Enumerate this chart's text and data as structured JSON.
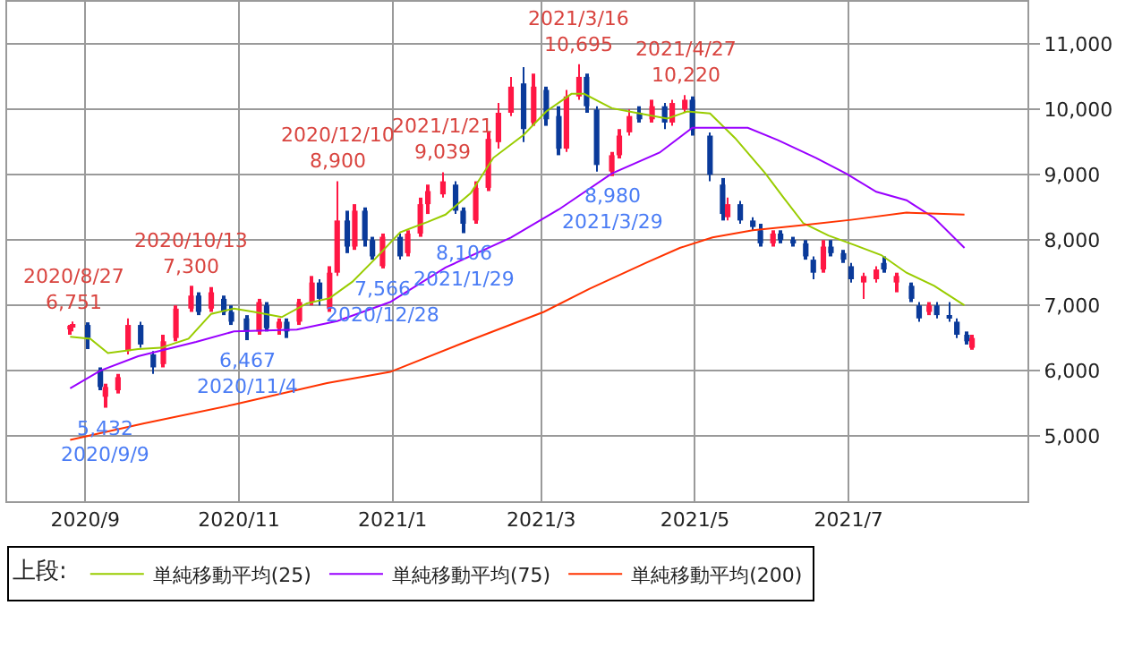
{
  "chart_data": {
    "type": "candlestick",
    "legend": "bottom",
    "legend_title": "上段:",
    "grid": true,
    "xlim": [
      "2020-08-01",
      "2021-09-10"
    ],
    "xticks": [
      {
        "value": "2020-09-01",
        "label": "2020/9"
      },
      {
        "value": "2020-11-01",
        "label": "2020/11"
      },
      {
        "value": "2021-01-01",
        "label": "2021/1"
      },
      {
        "value": "2021-03-01",
        "label": "2021/3"
      },
      {
        "value": "2021-05-01",
        "label": "2021/5"
      },
      {
        "value": "2021-07-01",
        "label": "2021/7"
      }
    ],
    "ylim": [
      4000,
      11650
    ],
    "yticks": [
      {
        "value": 5000,
        "label": "5,000"
      },
      {
        "value": 6000,
        "label": "6,000"
      },
      {
        "value": 7000,
        "label": "7,000"
      },
      {
        "value": 8000,
        "label": "8,000"
      },
      {
        "value": 9000,
        "label": "9,000"
      },
      {
        "value": 10000,
        "label": "10,000"
      },
      {
        "value": 11000,
        "label": "11,000"
      }
    ],
    "annotations": [
      {
        "text": "2020/8/27\n6,751",
        "x": "2020-08-27",
        "y": 6751
      },
      {
        "text": "5,432\n2020/9/9",
        "x": "2020-09-09",
        "y": 5432
      },
      {
        "text": "2020/10/13\n7,300",
        "x": "2020-10-13",
        "y": 7300
      },
      {
        "text": "6,467\n2020/11/4",
        "x": "2020-11-04",
        "y": 6467
      },
      {
        "text": "2020/12/10\n8,900",
        "x": "2020-12-10",
        "y": 8900
      },
      {
        "text": "7,566\n2020/12/28",
        "x": "2020-12-28",
        "y": 7566
      },
      {
        "text": "2021/1/21\n9,039",
        "x": "2021-01-21",
        "y": 9039
      },
      {
        "text": "8,106\n2021/1/29",
        "x": "2021-01-29",
        "y": 8106
      },
      {
        "text": "2021/3/16\n10,695",
        "x": "2021-03-16",
        "y": 10695
      },
      {
        "text": "8,980\n2021/3/29",
        "x": "2021-03-29",
        "y": 8980
      },
      {
        "text": "2021/4/27\n10,220",
        "x": "2021-04-27",
        "y": 10220
      }
    ],
    "series": [
      {
        "type": "line",
        "name": "単純移動平均(25)",
        "color": "#99cc00",
        "x": [
          "2020-08-26",
          "2020-09-03",
          "2020-09-10",
          "2020-09-22",
          "2020-10-01",
          "2020-10-12",
          "2020-10-21",
          "2020-10-30",
          "2020-11-07",
          "2020-11-18",
          "2020-11-28",
          "2020-12-07",
          "2020-12-16",
          "2020-12-25",
          "2021-01-04",
          "2021-01-15",
          "2021-01-22",
          "2021-02-01",
          "2021-02-10",
          "2021-02-22",
          "2021-03-03",
          "2021-03-13",
          "2021-03-18",
          "2021-03-29",
          "2021-04-09",
          "2021-04-20",
          "2021-04-28",
          "2021-05-07",
          "2021-05-17",
          "2021-05-29",
          "2021-06-05",
          "2021-06-13",
          "2021-06-23",
          "2021-07-03",
          "2021-07-14",
          "2021-07-24",
          "2021-08-04",
          "2021-08-16"
        ],
        "values": [
          6520,
          6490,
          6270,
          6330,
          6350,
          6490,
          6870,
          6950,
          6900,
          6820,
          7030,
          7110,
          7360,
          7710,
          8120,
          8280,
          8390,
          8720,
          9260,
          9610,
          9970,
          10240,
          10240,
          10020,
          9940,
          9860,
          9970,
          9940,
          9560,
          9020,
          8660,
          8260,
          8070,
          7930,
          7770,
          7500,
          7300,
          7000
        ]
      },
      {
        "type": "line",
        "name": "単純移動平均(75)",
        "color": "#9900ff",
        "x": [
          "2020-08-26",
          "2020-09-07",
          "2020-09-22",
          "2020-10-15",
          "2020-10-30",
          "2020-11-24",
          "2020-12-10",
          "2020-12-31",
          "2021-01-22",
          "2021-02-17",
          "2021-03-08",
          "2021-03-29",
          "2021-04-17",
          "2021-04-30",
          "2021-05-22",
          "2021-06-03",
          "2021-06-18",
          "2021-06-30",
          "2021-07-12",
          "2021-07-24",
          "2021-08-04",
          "2021-08-16"
        ],
        "values": [
          5730,
          6000,
          6220,
          6440,
          6600,
          6630,
          6760,
          7050,
          7580,
          8040,
          8470,
          9020,
          9340,
          9720,
          9720,
          9530,
          9260,
          9020,
          8740,
          8610,
          8340,
          7880
        ]
      },
      {
        "type": "line",
        "name": "単純移動平均(200)",
        "color": "#ff3300",
        "x": [
          "2020-08-26",
          "2020-09-24",
          "2020-10-30",
          "2020-12-06",
          "2020-12-31",
          "2021-01-28",
          "2021-03-02",
          "2021-03-20",
          "2021-04-12",
          "2021-04-25",
          "2021-05-08",
          "2021-05-24",
          "2021-06-13",
          "2021-07-02",
          "2021-07-24",
          "2021-08-16"
        ],
        "values": [
          4940,
          5190,
          5480,
          5810,
          5980,
          6410,
          6900,
          7250,
          7660,
          7880,
          8040,
          8150,
          8230,
          8310,
          8420,
          8390
        ]
      },
      {
        "colors": [
          "#ff1744",
          "#ff1744",
          "#0a3a9a",
          "#0a3a9a",
          "#ff1744",
          "#ff1744",
          "#ff1744",
          "#0a3a9a",
          "#0a3a9a",
          "#ff1744",
          "#ff1744",
          "#ff1744",
          "#0a3a9a",
          "#ff1744",
          "#0a3a9a",
          "#0a3a9a",
          "#0a3a9a",
          "#ff1744",
          "#0a3a9a",
          "#ff1744",
          "#0a3a9a",
          "#ff1744",
          "#ff1744",
          "#0a3a9a",
          "#ff1744",
          "#ff1744",
          "#0a3a9a",
          "#ff1744",
          "#0a3a9a",
          "#0a3a9a",
          "#ff1744",
          "#0a3a9a",
          "#ff1744",
          "#ff1744",
          "#ff1744",
          "#ff1744",
          "#0a3a9a",
          "#0a3a9a",
          "#ff1744",
          "#ff1744",
          "#ff1744",
          "#ff1744",
          "#0a3a9a",
          "#ff1744",
          "#0a3a9a",
          "#0a3a9a",
          "#ff1744",
          "#ff1744",
          "#0a3a9a",
          "#0a3a9a",
          "#ff1744",
          "#ff1744",
          "#ff1744",
          "#0a3a9a",
          "#ff1744",
          "#0a3a9a",
          "#ff1744",
          "#ff1744",
          "#0a3a9a",
          "#0a3a9a",
          "#0a3a9a",
          "#ff1744",
          "#0a3a9a",
          "#0a3a9a",
          "#0a3a9a",
          "#ff1744",
          "#0a3a9a",
          "#0a3a9a",
          "#0a3a9a",
          "#0a3a9a",
          "#ff1744",
          "#0a3a9a",
          "#0a3a9a",
          "#0a3a9a",
          "#ff1744",
          "#ff1744",
          "#0a3a9a",
          "#ff1744",
          "#0a3a9a",
          "#0a3a9a",
          "#ff1744",
          "#0a3a9a",
          "#0a3a9a",
          "#0a3a9a",
          "#0a3a9a",
          "#ff1744"
        ],
        "x": [
          "2020-08-26",
          "2020-08-27",
          "2020-09-02",
          "2020-09-07",
          "2020-09-09",
          "2020-09-14",
          "2020-09-18",
          "2020-09-23",
          "2020-09-28",
          "2020-10-02",
          "2020-10-07",
          "2020-10-13",
          "2020-10-16",
          "2020-10-21",
          "2020-10-26",
          "2020-10-29",
          "2020-11-04",
          "2020-11-09",
          "2020-11-12",
          "2020-11-17",
          "2020-11-20",
          "2020-11-25",
          "2020-11-30",
          "2020-12-03",
          "2020-12-07",
          "2020-12-10",
          "2020-12-14",
          "2020-12-17",
          "2020-12-21",
          "2020-12-24",
          "2020-12-28",
          "2021-01-04",
          "2021-01-07",
          "2021-01-12",
          "2021-01-15",
          "2021-01-21",
          "2021-01-26",
          "2021-01-29",
          "2021-02-03",
          "2021-02-08",
          "2021-02-12",
          "2021-02-17",
          "2021-02-22",
          "2021-02-26",
          "2021-03-03",
          "2021-03-08",
          "2021-03-11",
          "2021-03-16",
          "2021-03-19",
          "2021-03-23",
          "2021-03-29",
          "2021-04-01",
          "2021-04-05",
          "2021-04-09",
          "2021-04-14",
          "2021-04-19",
          "2021-04-22",
          "2021-04-27",
          "2021-04-30",
          "2021-05-07",
          "2021-05-12",
          "2021-05-14",
          "2021-05-19",
          "2021-05-24",
          "2021-05-27",
          "2021-06-01",
          "2021-06-04",
          "2021-06-09",
          "2021-06-14",
          "2021-06-17",
          "2021-06-21",
          "2021-06-24",
          "2021-06-29",
          "2021-07-02",
          "2021-07-07",
          "2021-07-12",
          "2021-07-15",
          "2021-07-20",
          "2021-07-26",
          "2021-07-29",
          "2021-08-02",
          "2021-08-05",
          "2021-08-10",
          "2021-08-13",
          "2021-08-17",
          "2021-08-19"
        ],
        "ohlc": [
          [
            6650,
            6700,
            6550,
            6680
          ],
          [
            6680,
            6751,
            6600,
            6700
          ],
          [
            6700,
            6740,
            6330,
            6500
          ],
          [
            6000,
            6050,
            5700,
            5750
          ],
          [
            5600,
            5800,
            5432,
            5750
          ],
          [
            5700,
            5950,
            5650,
            5900
          ],
          [
            6300,
            6800,
            6250,
            6700
          ],
          [
            6700,
            6750,
            6350,
            6400
          ],
          [
            6250,
            6300,
            5950,
            6050
          ],
          [
            6100,
            6550,
            6050,
            6450
          ],
          [
            6500,
            7000,
            6450,
            6950
          ],
          [
            6950,
            7300,
            6900,
            7150
          ],
          [
            7150,
            7200,
            6850,
            6900
          ],
          [
            6950,
            7280,
            6900,
            7200
          ],
          [
            7100,
            7150,
            6850,
            6900
          ],
          [
            6900,
            7000,
            6700,
            6750
          ],
          [
            6800,
            6850,
            6467,
            6600
          ],
          [
            6600,
            7100,
            6550,
            7050
          ],
          [
            7000,
            7050,
            6600,
            6650
          ],
          [
            6650,
            6800,
            6550,
            6750
          ],
          [
            6750,
            6800,
            6500,
            6600
          ],
          [
            6750,
            7100,
            6700,
            7050
          ],
          [
            7050,
            7450,
            7000,
            7350
          ],
          [
            7350,
            7400,
            7000,
            7100
          ],
          [
            6950,
            7600,
            6900,
            7500
          ],
          [
            7500,
            8900,
            7450,
            8300
          ],
          [
            8300,
            8450,
            7800,
            7900
          ],
          [
            7900,
            8550,
            7850,
            8450
          ],
          [
            8450,
            8500,
            7900,
            8000
          ],
          [
            8000,
            8050,
            7700,
            7750
          ],
          [
            7600,
            8100,
            7566,
            8050
          ],
          [
            8050,
            8100,
            7700,
            7750
          ],
          [
            7800,
            8150,
            7750,
            8100
          ],
          [
            8100,
            8650,
            8050,
            8550
          ],
          [
            8550,
            8850,
            8400,
            8750
          ],
          [
            8700,
            9039,
            8650,
            8900
          ],
          [
            8850,
            8900,
            8400,
            8450
          ],
          [
            8450,
            8500,
            8106,
            8250
          ],
          [
            8300,
            8900,
            8250,
            8800
          ],
          [
            8800,
            9650,
            8750,
            9550
          ],
          [
            9500,
            10100,
            9400,
            9950
          ],
          [
            9950,
            10500,
            9900,
            10350
          ],
          [
            10400,
            10650,
            9500,
            9700
          ],
          [
            9800,
            10550,
            9750,
            10350
          ],
          [
            10300,
            10350,
            9750,
            9850
          ],
          [
            9900,
            10050,
            9300,
            9400
          ],
          [
            9400,
            10300,
            9350,
            10200
          ],
          [
            10200,
            10695,
            10150,
            10500
          ],
          [
            10500,
            10550,
            9950,
            10050
          ],
          [
            10000,
            10050,
            9050,
            9150
          ],
          [
            9050,
            9350,
            8980,
            9300
          ],
          [
            9300,
            9700,
            9250,
            9600
          ],
          [
            9650,
            10000,
            9600,
            9900
          ],
          [
            9950,
            10050,
            9800,
            9850
          ],
          [
            9850,
            10150,
            9800,
            10050
          ],
          [
            10050,
            10100,
            9700,
            9800
          ],
          [
            9800,
            10150,
            9750,
            10100
          ],
          [
            10000,
            10220,
            9950,
            10150
          ],
          [
            10150,
            10200,
            9600,
            9700
          ],
          [
            9600,
            9650,
            8900,
            9000
          ],
          [
            8850,
            8950,
            8300,
            8400
          ],
          [
            8350,
            8650,
            8300,
            8550
          ],
          [
            8550,
            8600,
            8250,
            8300
          ],
          [
            8300,
            8350,
            8150,
            8200
          ],
          [
            8150,
            8250,
            7900,
            7950
          ],
          [
            7950,
            8150,
            7900,
            8100
          ],
          [
            8100,
            8150,
            7950,
            8000
          ],
          [
            8000,
            8050,
            7900,
            7950
          ],
          [
            7950,
            8000,
            7700,
            7750
          ],
          [
            7700,
            7750,
            7400,
            7500
          ],
          [
            7550,
            8000,
            7500,
            7900
          ],
          [
            7900,
            8000,
            7750,
            7800
          ],
          [
            7800,
            7850,
            7650,
            7700
          ],
          [
            7600,
            7650,
            7350,
            7400
          ],
          [
            7350,
            7500,
            7100,
            7450
          ],
          [
            7400,
            7600,
            7350,
            7550
          ],
          [
            7650,
            7750,
            7500,
            7550
          ],
          [
            7350,
            7500,
            7200,
            7450
          ],
          [
            7300,
            7350,
            7050,
            7100
          ],
          [
            7000,
            7050,
            6750,
            6800
          ],
          [
            6900,
            7050,
            6850,
            7000
          ],
          [
            7000,
            7050,
            6800,
            6850
          ],
          [
            6850,
            7050,
            6750,
            6800
          ],
          [
            6750,
            6800,
            6500,
            6550
          ],
          [
            6550,
            6600,
            6400,
            6450
          ],
          [
            6350,
            6550,
            6320,
            6500
          ]
        ]
      }
    ]
  }
}
